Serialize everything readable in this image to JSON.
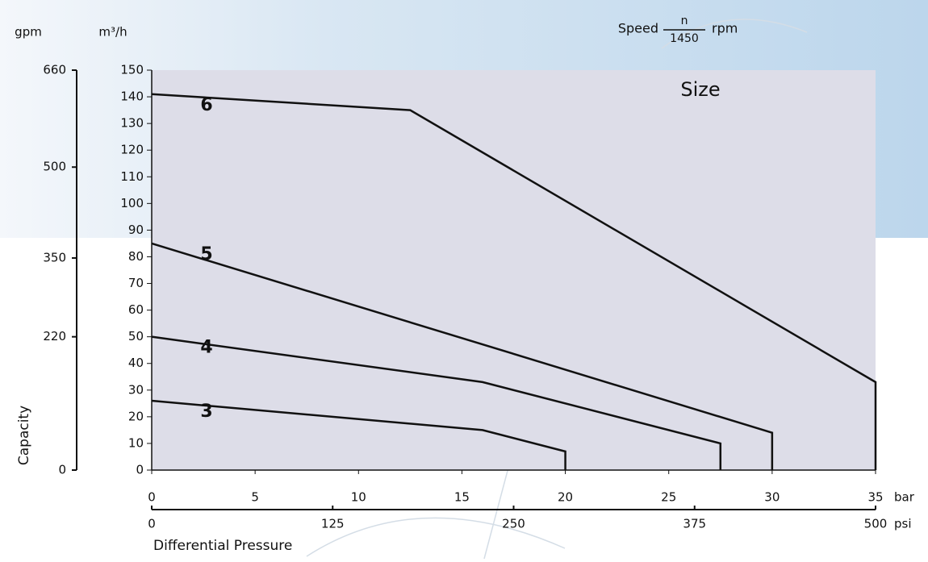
{
  "chart_data": {
    "type": "line",
    "speed_label": "Speed",
    "speed_numerator": "n",
    "speed_denominator": "1450",
    "speed_unit": "rpm",
    "legend_title": "Size",
    "y_unit": "m³/h",
    "y2_unit": "gpm",
    "y_label": "Capacity",
    "x_unit": "bar",
    "x2_unit": "psi",
    "x_label": "Differential Pressure",
    "xlim": [
      0,
      35
    ],
    "xticks": [
      0,
      5,
      10,
      15,
      20,
      25,
      30,
      35
    ],
    "x2lim": [
      0,
      500
    ],
    "x2ticks": [
      0,
      125,
      250,
      375,
      500
    ],
    "ylim": [
      0,
      150
    ],
    "yticks": [
      0,
      10,
      20,
      30,
      40,
      50,
      60,
      70,
      80,
      90,
      100,
      110,
      120,
      130,
      140,
      150
    ],
    "y2lim": [
      0,
      660
    ],
    "y2ticks": [
      0,
      220,
      350,
      500,
      660
    ],
    "series": [
      {
        "name": "6",
        "color": "#111111",
        "x": [
          0,
          12.5,
          35,
          35
        ],
        "values": [
          141,
          135,
          33,
          0
        ]
      },
      {
        "name": "5",
        "color": "#111111",
        "x": [
          0,
          30,
          30
        ],
        "values": [
          85,
          14,
          0
        ]
      },
      {
        "name": "4",
        "color": "#111111",
        "x": [
          0,
          16,
          27.5,
          27.5
        ],
        "values": [
          50,
          33,
          10,
          0
        ]
      },
      {
        "name": "3",
        "color": "#111111",
        "x": [
          0,
          16,
          20,
          20
        ],
        "values": [
          26,
          15,
          7,
          0
        ]
      }
    ]
  }
}
